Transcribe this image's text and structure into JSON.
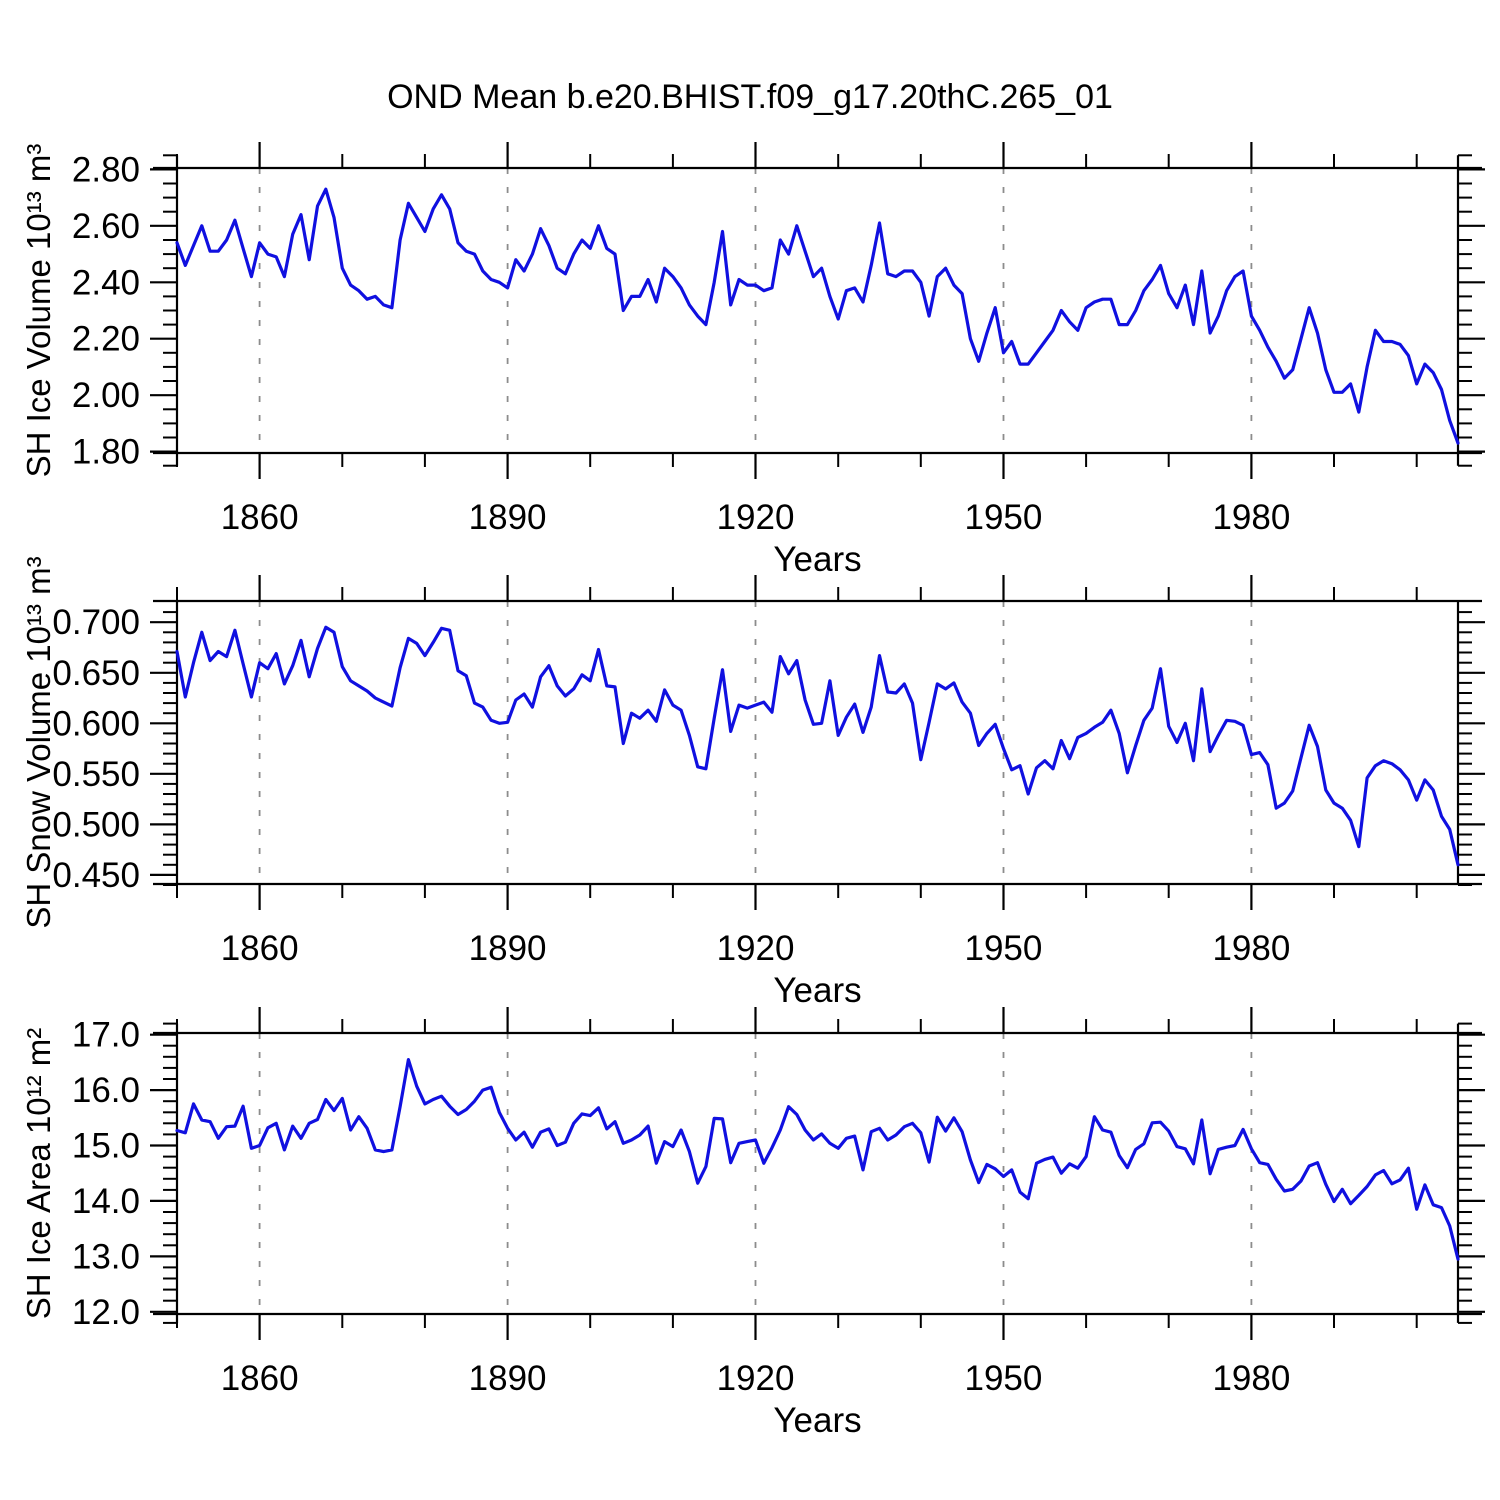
{
  "page": {
    "background": "#ffffff"
  },
  "chart_data": {
    "type": "line",
    "suptitle": "OND Mean b.e20.BHIST.f09_g17.20thC.265_01",
    "xlabel": "Years",
    "x_range": [
      1850,
      2005
    ],
    "x_major_ticks": [
      1860,
      1890,
      1920,
      1950,
      1980
    ],
    "x_major_tick_labels": [
      "1860",
      "1890",
      "1920",
      "1950",
      "1980"
    ],
    "x_minor_step": 10,
    "grid": "vertical dashed gridlines at x major ticks",
    "legend": "none",
    "line_color": "#1010e0",
    "grid_color": "#8c8c8c",
    "axis_color": "#000000",
    "x_years": [
      1850,
      1851,
      1852,
      1853,
      1854,
      1855,
      1856,
      1857,
      1858,
      1859,
      1860,
      1861,
      1862,
      1863,
      1864,
      1865,
      1866,
      1867,
      1868,
      1869,
      1870,
      1871,
      1872,
      1873,
      1874,
      1875,
      1876,
      1877,
      1878,
      1879,
      1880,
      1881,
      1882,
      1883,
      1884,
      1885,
      1886,
      1887,
      1888,
      1889,
      1890,
      1891,
      1892,
      1893,
      1894,
      1895,
      1896,
      1897,
      1898,
      1899,
      1900,
      1901,
      1902,
      1903,
      1904,
      1905,
      1906,
      1907,
      1908,
      1909,
      1910,
      1911,
      1912,
      1913,
      1914,
      1915,
      1916,
      1917,
      1918,
      1919,
      1920,
      1921,
      1922,
      1923,
      1924,
      1925,
      1926,
      1927,
      1928,
      1929,
      1930,
      1931,
      1932,
      1933,
      1934,
      1935,
      1936,
      1937,
      1938,
      1939,
      1940,
      1941,
      1942,
      1943,
      1944,
      1945,
      1946,
      1947,
      1948,
      1949,
      1950,
      1951,
      1952,
      1953,
      1954,
      1955,
      1956,
      1957,
      1958,
      1959,
      1960,
      1961,
      1962,
      1963,
      1964,
      1965,
      1966,
      1967,
      1968,
      1969,
      1970,
      1971,
      1972,
      1973,
      1974,
      1975,
      1976,
      1977,
      1978,
      1979,
      1980,
      1981,
      1982,
      1983,
      1984,
      1985,
      1986,
      1987,
      1988,
      1989,
      1990,
      1991,
      1992,
      1993,
      1994,
      1995,
      1996,
      1997,
      1998,
      1999,
      2000,
      2001,
      2002,
      2003,
      2004,
      2005
    ],
    "panels": [
      {
        "name": "sh-ice-volume",
        "ylabel": "SH Ice Volume 10¹³ m³",
        "ytick_values": [
          1.8,
          2.0,
          2.2,
          2.4,
          2.6,
          2.8
        ],
        "ytick_labels": [
          "1.80",
          "2.00",
          "2.20",
          "2.40",
          "2.60",
          "2.80"
        ],
        "y_minor_step": 0.05,
        "ylim": [
          1.795,
          2.805
        ],
        "values": [
          2.54,
          2.46,
          2.53,
          2.6,
          2.51,
          2.51,
          2.55,
          2.62,
          2.52,
          2.42,
          2.54,
          2.5,
          2.49,
          2.42,
          2.57,
          2.64,
          2.48,
          2.67,
          2.73,
          2.63,
          2.45,
          2.39,
          2.37,
          2.34,
          2.35,
          2.32,
          2.31,
          2.55,
          2.68,
          2.63,
          2.58,
          2.66,
          2.71,
          2.66,
          2.54,
          2.51,
          2.5,
          2.44,
          2.41,
          2.4,
          2.38,
          2.48,
          2.44,
          2.5,
          2.59,
          2.53,
          2.45,
          2.43,
          2.5,
          2.55,
          2.52,
          2.6,
          2.52,
          2.5,
          2.3,
          2.35,
          2.35,
          2.41,
          2.33,
          2.45,
          2.42,
          2.38,
          2.32,
          2.28,
          2.25,
          2.4,
          2.58,
          2.32,
          2.41,
          2.39,
          2.39,
          2.37,
          2.38,
          2.55,
          2.5,
          2.6,
          2.51,
          2.42,
          2.45,
          2.35,
          2.27,
          2.37,
          2.38,
          2.33,
          2.46,
          2.61,
          2.43,
          2.42,
          2.44,
          2.44,
          2.4,
          2.28,
          2.42,
          2.45,
          2.39,
          2.36,
          2.2,
          2.12,
          2.22,
          2.31,
          2.15,
          2.19,
          2.11,
          2.11,
          2.15,
          2.19,
          2.23,
          2.3,
          2.26,
          2.23,
          2.31,
          2.33,
          2.34,
          2.34,
          2.25,
          2.25,
          2.3,
          2.37,
          2.41,
          2.46,
          2.36,
          2.31,
          2.39,
          2.25,
          2.44,
          2.22,
          2.28,
          2.37,
          2.42,
          2.44,
          2.28,
          2.23,
          2.17,
          2.12,
          2.06,
          2.09,
          2.2,
          2.31,
          2.22,
          2.09,
          2.01,
          2.01,
          2.04,
          1.94,
          2.1,
          2.23,
          2.19,
          2.19,
          2.18,
          2.14,
          2.04,
          2.11,
          2.08,
          2.02,
          1.91,
          1.83
        ]
      },
      {
        "name": "sh-snow-volume",
        "ylabel": "SH Snow Volume 10¹³ m³",
        "ytick_values": [
          0.45,
          0.5,
          0.55,
          0.6,
          0.65,
          0.7
        ],
        "ytick_labels": [
          "0.450",
          "0.500",
          "0.550",
          "0.600",
          "0.650",
          "0.700"
        ],
        "y_minor_step": 0.01,
        "ylim": [
          0.441,
          0.721
        ],
        "values": [
          0.671,
          0.626,
          0.66,
          0.69,
          0.662,
          0.671,
          0.666,
          0.692,
          0.659,
          0.626,
          0.66,
          0.654,
          0.669,
          0.639,
          0.657,
          0.682,
          0.646,
          0.674,
          0.695,
          0.69,
          0.656,
          0.642,
          0.637,
          0.632,
          0.625,
          0.621,
          0.617,
          0.655,
          0.684,
          0.679,
          0.667,
          0.68,
          0.694,
          0.692,
          0.652,
          0.647,
          0.62,
          0.616,
          0.603,
          0.6,
          0.601,
          0.623,
          0.629,
          0.616,
          0.646,
          0.657,
          0.637,
          0.627,
          0.634,
          0.648,
          0.642,
          0.673,
          0.637,
          0.636,
          0.58,
          0.61,
          0.605,
          0.613,
          0.602,
          0.633,
          0.618,
          0.613,
          0.588,
          0.557,
          0.555,
          0.605,
          0.653,
          0.592,
          0.618,
          0.615,
          0.618,
          0.621,
          0.611,
          0.666,
          0.649,
          0.662,
          0.623,
          0.599,
          0.6,
          0.642,
          0.588,
          0.606,
          0.619,
          0.591,
          0.616,
          0.667,
          0.631,
          0.63,
          0.639,
          0.62,
          0.564,
          0.601,
          0.639,
          0.634,
          0.64,
          0.621,
          0.61,
          0.578,
          0.59,
          0.599,
          0.575,
          0.554,
          0.558,
          0.53,
          0.556,
          0.563,
          0.555,
          0.583,
          0.565,
          0.586,
          0.59,
          0.596,
          0.601,
          0.613,
          0.59,
          0.551,
          0.578,
          0.603,
          0.615,
          0.654,
          0.597,
          0.581,
          0.6,
          0.563,
          0.634,
          0.572,
          0.588,
          0.603,
          0.602,
          0.598,
          0.569,
          0.571,
          0.559,
          0.516,
          0.521,
          0.533,
          0.566,
          0.598,
          0.577,
          0.534,
          0.521,
          0.516,
          0.504,
          0.478,
          0.546,
          0.558,
          0.563,
          0.56,
          0.554,
          0.544,
          0.524,
          0.544,
          0.534,
          0.508,
          0.495,
          0.46
        ]
      },
      {
        "name": "sh-ice-area",
        "ylabel": "SH Ice Area 10¹² m²",
        "ytick_values": [
          12.0,
          13.0,
          14.0,
          15.0,
          16.0,
          17.0
        ],
        "ytick_labels": [
          "12.0",
          "13.0",
          "14.0",
          "15.0",
          "16.0",
          "17.0"
        ],
        "y_minor_step": 0.2,
        "ylim": [
          11.96,
          17.03
        ],
        "values": [
          15.27,
          15.23,
          15.75,
          15.46,
          15.43,
          15.13,
          15.34,
          15.35,
          15.71,
          14.95,
          15.0,
          15.32,
          15.4,
          14.92,
          15.35,
          15.13,
          15.4,
          15.47,
          15.83,
          15.63,
          15.85,
          15.28,
          15.52,
          15.31,
          14.92,
          14.89,
          14.92,
          15.7,
          16.55,
          16.07,
          15.75,
          15.83,
          15.89,
          15.71,
          15.56,
          15.65,
          15.8,
          16.0,
          16.05,
          15.6,
          15.31,
          15.1,
          15.24,
          14.97,
          15.24,
          15.3,
          15.0,
          15.06,
          15.4,
          15.57,
          15.54,
          15.68,
          15.3,
          15.43,
          15.04,
          15.1,
          15.19,
          15.35,
          14.68,
          15.07,
          14.98,
          15.28,
          14.89,
          14.32,
          14.62,
          15.49,
          15.48,
          14.69,
          15.04,
          15.07,
          15.1,
          14.68,
          14.96,
          15.28,
          15.7,
          15.56,
          15.28,
          15.1,
          15.21,
          15.04,
          14.95,
          15.13,
          15.17,
          14.56,
          15.25,
          15.31,
          15.1,
          15.19,
          15.34,
          15.4,
          15.23,
          14.7,
          15.51,
          15.26,
          15.5,
          15.25,
          14.74,
          14.33,
          14.66,
          14.58,
          14.44,
          14.56,
          14.16,
          14.04,
          14.68,
          14.75,
          14.79,
          14.5,
          14.67,
          14.59,
          14.8,
          15.52,
          15.28,
          15.24,
          14.82,
          14.6,
          14.93,
          15.03,
          15.41,
          15.42,
          15.26,
          14.98,
          14.94,
          14.67,
          15.46,
          14.49,
          14.93,
          14.97,
          15.0,
          15.29,
          14.94,
          14.69,
          14.66,
          14.39,
          14.18,
          14.21,
          14.36,
          14.63,
          14.69,
          14.3,
          13.99,
          14.21,
          13.95,
          14.1,
          14.26,
          14.47,
          14.55,
          14.31,
          14.38,
          14.59,
          13.85,
          14.29,
          13.93,
          13.88,
          13.55,
          12.95
        ]
      }
    ]
  }
}
